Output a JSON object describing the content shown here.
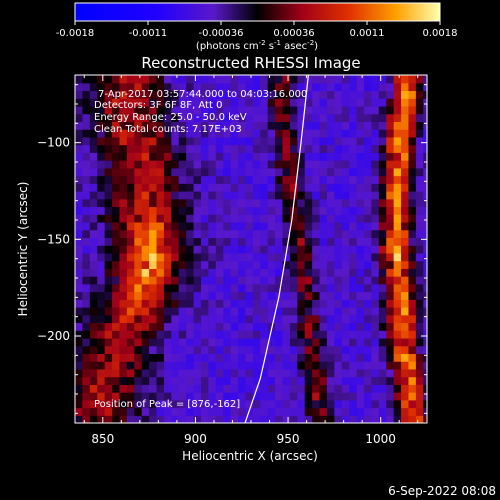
{
  "chart_data": {
    "type": "heatmap",
    "title": "Reconstructed RHESSI Image",
    "xlabel": "Heliocentric X (arcsec)",
    "ylabel": "Heliocentric Y (arcsec)",
    "xlim": [
      835,
      1025
    ],
    "ylim": [
      -245,
      -65
    ],
    "x_ticks": [
      850,
      900,
      950,
      1000
    ],
    "y_ticks": [
      -100,
      -150,
      -200
    ],
    "colorbar": {
      "range": [
        -0.0018,
        0.0018
      ],
      "ticks": [
        "-0.0018",
        "-0.0011",
        "-0.00036",
        "0.00036",
        "0.0011",
        "0.0018"
      ],
      "label_main": "(photons cm",
      "label_sup1": "-2",
      "label_mid1": " s",
      "label_sup2": "-1",
      "label_mid2": " asec",
      "label_sup3": "-2",
      "label_end": ")"
    },
    "annotations": [
      "7-Apr-2017 03:57:44.000 to 04:03:16.000",
      "Detectors: 3F 6F 8F, Att 0",
      "Energy Range: 25.0 - 50.0 keV",
      "Clean    Total counts: 7.17E+03"
    ],
    "peak_label": "Position of Peak = [876,-162]",
    "peak": [
      876,
      -162
    ],
    "limb_curve": [
      [
        925,
        -250
      ],
      [
        935,
        -222
      ],
      [
        945,
        -180
      ],
      [
        952,
        -140
      ],
      [
        957,
        -100
      ],
      [
        961,
        -65
      ]
    ],
    "bands": [
      {
        "name": "left-bright-band",
        "centers": [
          [
            846,
            -245
          ],
          [
            858,
            -200
          ],
          [
            876,
            -162
          ],
          [
            872,
            -120
          ],
          [
            866,
            -90
          ],
          [
            860,
            -65
          ]
        ],
        "width": 22,
        "peak": 0.0018
      },
      {
        "name": "middle-faint-band",
        "centers": [
          [
            968,
            -245
          ],
          [
            962,
            -200
          ],
          [
            956,
            -150
          ],
          [
            950,
            -110
          ],
          [
            946,
            -65
          ]
        ],
        "width": 7,
        "peak": 0.00075
      },
      {
        "name": "right-bright-band",
        "centers": [
          [
            1018,
            -245
          ],
          [
            1012,
            -200
          ],
          [
            1008,
            -150
          ],
          [
            1010,
            -100
          ],
          [
            1015,
            -65
          ]
        ],
        "width": 8,
        "peak": 0.0016
      }
    ]
  },
  "timestamp": "6-Sep-2022 08:08"
}
